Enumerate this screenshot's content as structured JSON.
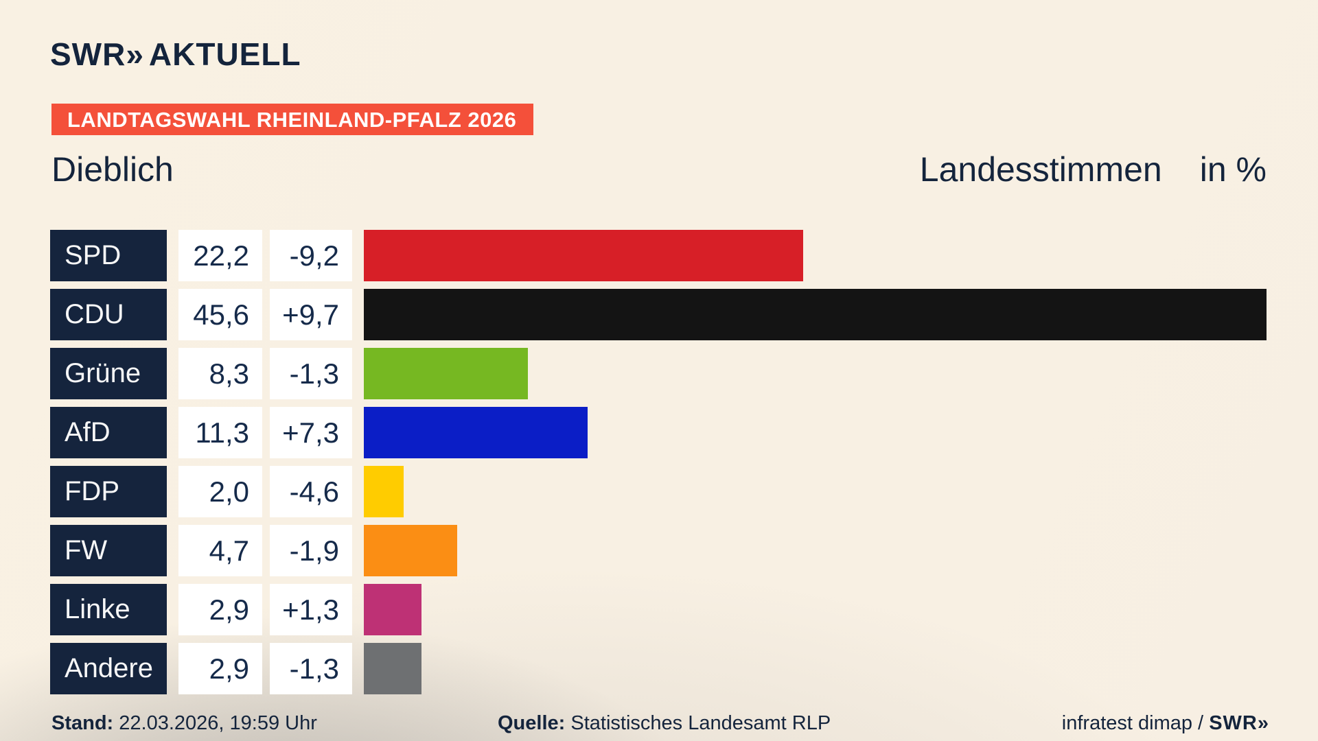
{
  "brand": {
    "swr": "SWR",
    "chevrons": "»",
    "suffix": "AKTUELL"
  },
  "banner": {
    "text": "LANDTAGSWAHL RHEINLAND-PFALZ 2026"
  },
  "header": {
    "municipality": "Dieblich",
    "measure": "Landesstimmen",
    "unit": "in %"
  },
  "chart_data": {
    "type": "bar",
    "orientation": "horizontal",
    "title": "Landtagswahl Rheinland-Pfalz 2026 – Dieblich – Landesstimmen in %",
    "unit": "%",
    "xlim": [
      0,
      45.6
    ],
    "grid": false,
    "legend": false,
    "categories": [
      "SPD",
      "CDU",
      "Grüne",
      "AfD",
      "FDP",
      "FW",
      "Linke",
      "Andere"
    ],
    "values": [
      22.2,
      45.6,
      8.3,
      11.3,
      2.0,
      4.7,
      2.9,
      2.9
    ],
    "value_labels": [
      "22,2",
      "45,6",
      "8,3",
      "11,3",
      "2,0",
      "4,7",
      "2,9",
      "2,9"
    ],
    "changes": [
      -9.2,
      9.7,
      -1.3,
      7.3,
      -4.6,
      -1.9,
      1.3,
      -1.3
    ],
    "change_labels": [
      "-9,2",
      "+9,7",
      "-1,3",
      "+7,3",
      "-4,6",
      "-1,9",
      "+1,3",
      "-1,3"
    ],
    "bar_colors": [
      "#d71f27",
      "#141414",
      "#76b822",
      "#0b1ec6",
      "#ffcc00",
      "#fb8e14",
      "#be3175",
      "#6e7072"
    ]
  },
  "footer": {
    "stand_label": "Stand:",
    "stand_value": "22.03.2026, 19:59 Uhr",
    "quelle_label": "Quelle:",
    "quelle_value": "Statistisches Landesamt RLP",
    "credit_text": "infratest dimap /",
    "credit_brand": "SWR",
    "credit_chevrons": "»"
  },
  "colors": {
    "navy": "#15243d",
    "banner_red": "#f4503a",
    "box_white": "#ffffff",
    "background_cream": "#f8f0e3"
  }
}
